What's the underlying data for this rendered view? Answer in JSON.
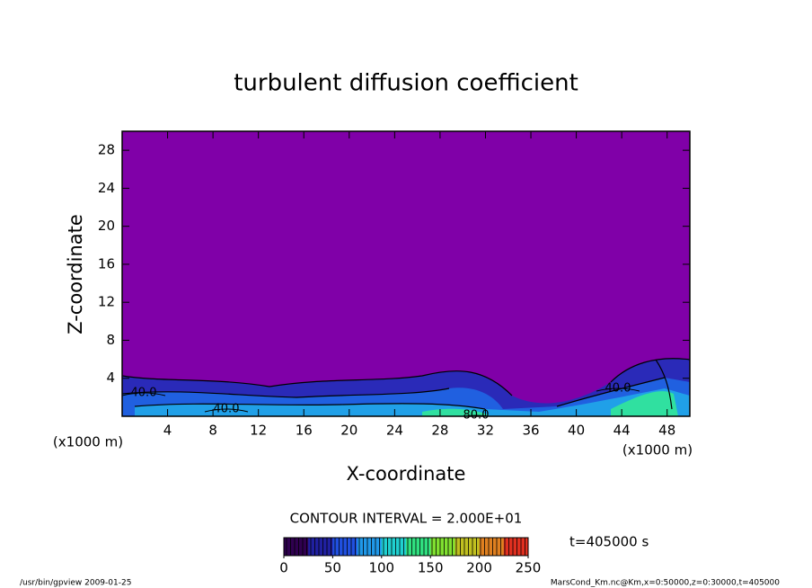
{
  "chart_data": {
    "type": "contour",
    "title": "turbulent diffusion coefficient",
    "x_label": "X-coordinate",
    "y_label": "Z-coordinate",
    "x_unit": "(x1000 m)",
    "y_unit": "(x1000 m)",
    "xlim": [
      0,
      50
    ],
    "xticks": [
      4,
      8,
      12,
      16,
      20,
      24,
      28,
      32,
      36,
      40,
      44,
      48
    ],
    "ylim": [
      0,
      30
    ],
    "yticks": [
      4,
      8,
      12,
      16,
      20,
      24,
      28
    ],
    "background_color": "#8000a8",
    "contour_interval": "CONTOUR INTERVAL = 2.000E+01",
    "time": "t=405000 s",
    "contour_labels": [
      {
        "value": 40,
        "label": "40.0"
      },
      {
        "value": 40,
        "label": "40.0"
      },
      {
        "value": 40,
        "label": "40.0"
      },
      {
        "value": 80,
        "label": "80.0"
      }
    ],
    "colorbar": {
      "lim": [
        0,
        250
      ],
      "ticks": [
        0,
        50,
        100,
        150,
        200,
        250
      ],
      "colors": [
        "#300050",
        "#2020a0",
        "#2050e0",
        "#2098e8",
        "#20d0d0",
        "#30e080",
        "#80e030",
        "#c0c020",
        "#e08020",
        "#e03020"
      ]
    }
  },
  "footer_left": "/usr/bin/gpview  2009-01-25",
  "footer_right": "MarsCond_Km.nc@Km,x=0:50000,z=0:30000,t=405000"
}
